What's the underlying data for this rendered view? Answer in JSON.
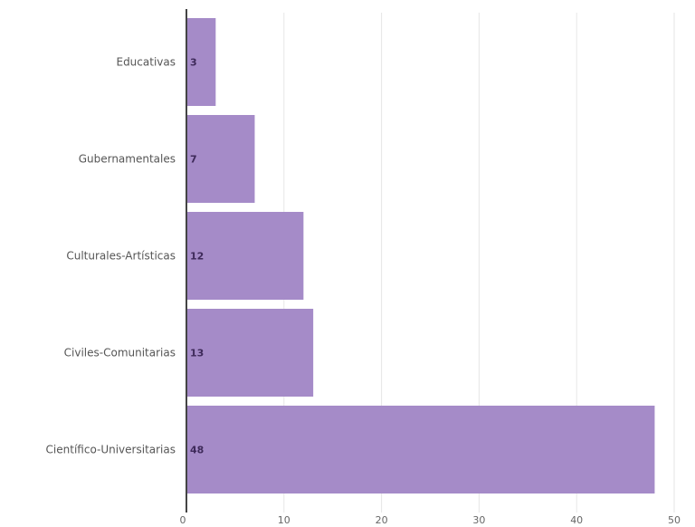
{
  "chart_data": {
    "type": "bar",
    "orientation": "horizontal",
    "title": "",
    "xlabel": "",
    "ylabel": "",
    "categories": [
      "Educativas",
      "Gubernamentales",
      "Culturales-Artísticas",
      "Civiles-Comunitarias",
      "Científico-Universitarias"
    ],
    "values": [
      3,
      7,
      12,
      13,
      48
    ],
    "xlim": [
      0,
      50
    ],
    "xticks": [
      0,
      10,
      20,
      30,
      40,
      50
    ],
    "grid": "vertical",
    "legend": "none",
    "bar_color": "#a58bc8",
    "label_color": "#3e2a5a"
  }
}
